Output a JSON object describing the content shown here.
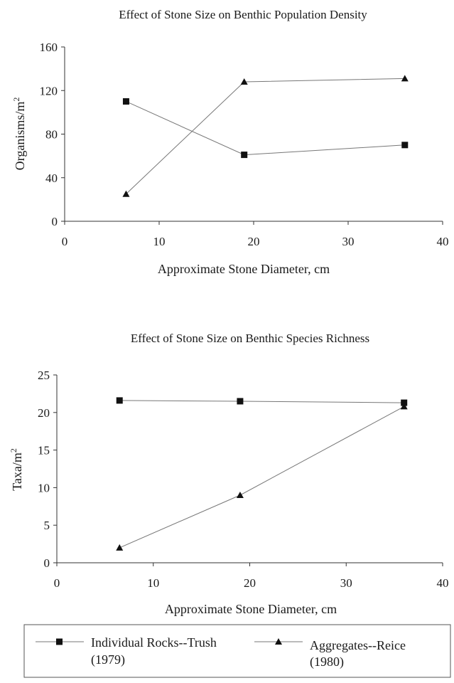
{
  "chart_data": [
    {
      "type": "line",
      "title": "Effect of Stone Size on Benthic Population Density",
      "xlabel": "Approximate Stone Diameter, cm",
      "ylabel": "Organisms/m",
      "ylabel_sup": "2",
      "xlim": [
        0,
        40
      ],
      "ylim": [
        0,
        160
      ],
      "xticks": [
        0,
        10,
        20,
        30,
        40
      ],
      "yticks": [
        0,
        40,
        80,
        120,
        160
      ],
      "grid": false,
      "series": [
        {
          "name": "Individual Rocks--Trush (1979)",
          "marker": "square",
          "x": [
            6.5,
            19,
            36
          ],
          "y": [
            110,
            61,
            70
          ]
        },
        {
          "name": "Aggregates--Reice (1980)",
          "marker": "triangle",
          "x": [
            6.5,
            19,
            36
          ],
          "y": [
            25,
            128,
            131
          ]
        }
      ]
    },
    {
      "type": "line",
      "title": "Effect of Stone Size on Benthic Species Richness",
      "xlabel": "Approximate Stone Diameter, cm",
      "ylabel": "Taxa/m",
      "ylabel_sup": "2",
      "xlim": [
        0,
        40
      ],
      "ylim": [
        0,
        25
      ],
      "xticks": [
        0,
        10,
        20,
        30,
        40
      ],
      "yticks": [
        0,
        5,
        10,
        15,
        20,
        25
      ],
      "grid": false,
      "series": [
        {
          "name": "Individual Rocks--Trush (1979)",
          "marker": "square",
          "x": [
            6.5,
            19,
            36
          ],
          "y": [
            21.6,
            21.5,
            21.3
          ]
        },
        {
          "name": "Aggregates--Reice (1980)",
          "marker": "triangle",
          "x": [
            6.5,
            19,
            36
          ],
          "y": [
            2,
            9,
            20.8
          ]
        }
      ]
    }
  ],
  "legend": {
    "position": "bottom",
    "items": [
      {
        "marker": "square",
        "line1": "Individual Rocks--Trush",
        "line2": "(1979)"
      },
      {
        "marker": "triangle",
        "line1": "Aggregates--Reice",
        "line2": "(1980)"
      }
    ]
  }
}
